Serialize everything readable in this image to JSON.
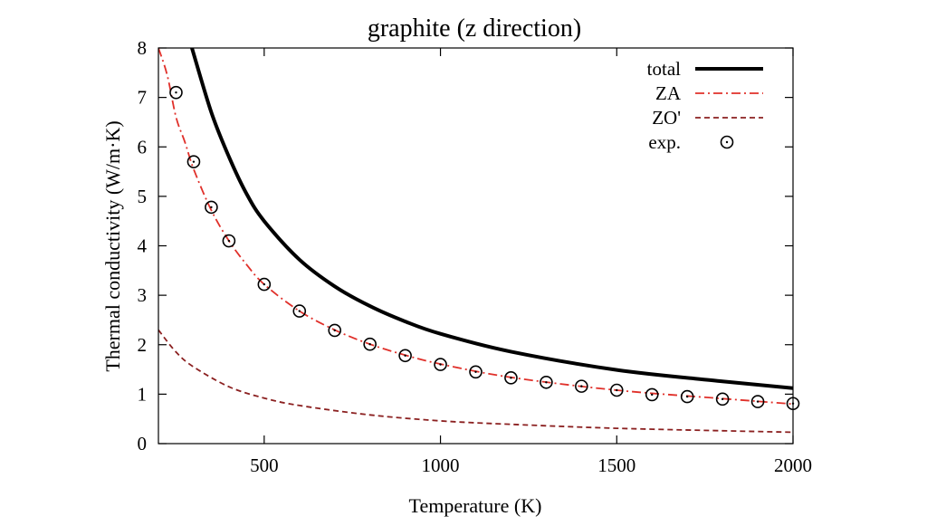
{
  "chart_data": {
    "type": "line",
    "title": "graphite (z direction)",
    "xlabel": "Temperature (K)",
    "ylabel": "Thermal conductivity (W/m·K)",
    "xlim": [
      200,
      2000
    ],
    "ylim": [
      0,
      8
    ],
    "xticks": [
      500,
      1000,
      1500,
      2000
    ],
    "yticks": [
      0,
      1,
      2,
      3,
      4,
      5,
      6,
      7,
      8
    ],
    "grid": false,
    "legend_position": "top-right",
    "series": [
      {
        "name": "total",
        "style": "solid-thick",
        "color": "#000000",
        "x": [
          295,
          350,
          400,
          450,
          500,
          600,
          700,
          800,
          900,
          1000,
          1200,
          1500,
          1800,
          2000
        ],
        "y": [
          8.0,
          6.7,
          5.8,
          5.05,
          4.5,
          3.72,
          3.18,
          2.78,
          2.47,
          2.22,
          1.86,
          1.49,
          1.26,
          1.12
        ]
      },
      {
        "name": "ZA",
        "style": "dash-dot",
        "color": "#e0302a",
        "x": [
          200,
          225,
          250,
          275,
          300,
          350,
          400,
          450,
          500,
          600,
          700,
          800,
          900,
          1000,
          1200,
          1500,
          1800,
          2000
        ],
        "y": [
          8.0,
          7.45,
          6.6,
          6.1,
          5.55,
          4.72,
          4.1,
          3.62,
          3.22,
          2.68,
          2.3,
          2.01,
          1.79,
          1.61,
          1.34,
          1.08,
          0.91,
          0.8
        ]
      },
      {
        "name": "ZO'",
        "style": "dashed",
        "color": "#8b2020",
        "x": [
          200,
          250,
          300,
          400,
          500,
          600,
          800,
          1000,
          1200,
          1500,
          1800,
          2000
        ],
        "y": [
          2.3,
          1.85,
          1.55,
          1.15,
          0.92,
          0.77,
          0.58,
          0.46,
          0.39,
          0.31,
          0.26,
          0.23
        ]
      },
      {
        "name": "exp.",
        "style": "markers",
        "color": "#000000",
        "x": [
          250,
          300,
          350,
          400,
          500,
          600,
          700,
          800,
          900,
          1000,
          1100,
          1200,
          1300,
          1400,
          1500,
          1600,
          1700,
          1800,
          1900,
          2000
        ],
        "y": [
          7.1,
          5.7,
          4.78,
          4.1,
          3.22,
          2.68,
          2.29,
          2.01,
          1.78,
          1.6,
          1.45,
          1.33,
          1.24,
          1.16,
          1.08,
          0.99,
          0.95,
          0.9,
          0.85,
          0.81
        ]
      }
    ]
  }
}
